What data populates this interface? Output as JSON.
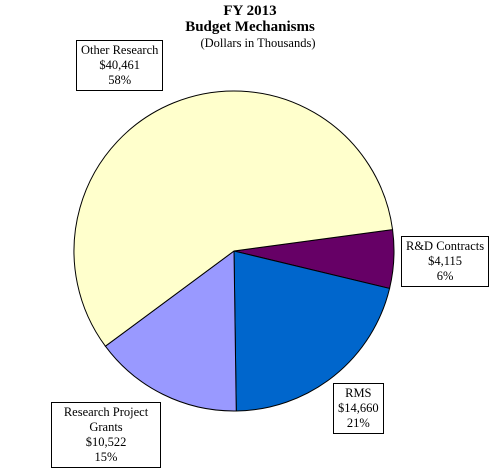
{
  "chart_data": {
    "type": "pie",
    "title": "FY 2013",
    "subtitle": "Budget Mechanisms",
    "units_note": "(Dollars in Thousands)",
    "slices": [
      {
        "label": "Other Research",
        "value_text": "$40,461",
        "percent_text": "58%",
        "value": 40461,
        "color": "#ffffcc"
      },
      {
        "label": "R&D Contracts",
        "value_text": "$4,115",
        "percent_text": "6%",
        "value": 4115,
        "color": "#660066"
      },
      {
        "label": "RMS",
        "value_text": "$14,660",
        "percent_text": "21%",
        "value": 14660,
        "color": "#0066cc"
      },
      {
        "label": "Research Project Grants",
        "value_text": "$10,522",
        "percent_text": "15%",
        "value": 10522,
        "color": "#9999ff"
      }
    ]
  }
}
